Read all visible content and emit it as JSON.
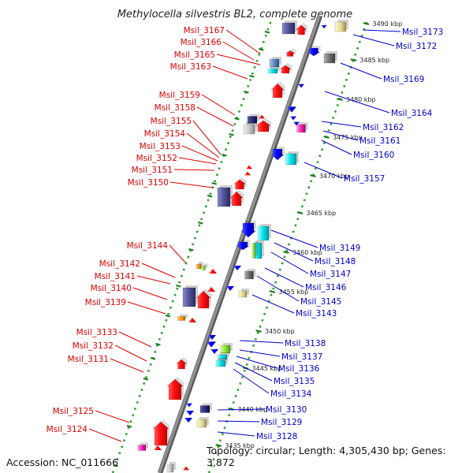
{
  "title": "Methylocella silvestris BL2, complete genome",
  "footer": {
    "accession": "Accession: NC_011666",
    "topology": "Topology: circular; Length: 4,305,430 bp; Genes: 3,872"
  },
  "ticks": [
    {
      "label": "3490 kbp",
      "kb": 3490
    },
    {
      "label": "3485 kbp",
      "kb": 3485
    },
    {
      "label": "3480 kbp",
      "kb": 3480
    },
    {
      "label": "3475 kbp",
      "kb": 3475
    },
    {
      "label": "3470 kbp",
      "kb": 3470
    },
    {
      "label": "3465 kbp",
      "kb": 3465
    },
    {
      "label": "3460 kbp",
      "kb": 3460
    },
    {
      "label": "3455 kbp",
      "kb": 3455
    },
    {
      "label": "3450 kbp",
      "kb": 3450
    },
    {
      "label": "3445 kbp",
      "kb": 3445
    },
    {
      "label": "3440 kbp",
      "kb": 3440
    },
    {
      "label": "3435 kbp",
      "kb": 3435
    }
  ],
  "left_labels": [
    "Msil_3167",
    "Msil_3166",
    "Msil_3165",
    "Msil_3163",
    "Msil_3159",
    "Msil_3158",
    "Msil_3155",
    "Msil_3154",
    "Msil_3153",
    "Msil_3152",
    "Msil_3151",
    "Msil_3150",
    "Msil_3144",
    "Msil_3142",
    "Msil_3141",
    "Msil_3140",
    "Msil_3139",
    "Msil_3133",
    "Msil_3132",
    "Msil_3131",
    "Msil_3125",
    "Msil_3124"
  ],
  "right_labels": [
    "Msil_3173",
    "Msil_3172",
    "Msil_3169",
    "Msil_3164",
    "Msil_3162",
    "Msil_3161",
    "Msil_3160",
    "Msil_3157",
    "Msil_3149",
    "Msil_3148",
    "Msil_3147",
    "Msil_3146",
    "Msil_3145",
    "Msil_3143",
    "Msil_3138",
    "Msil_3137",
    "Msil_3136",
    "Msil_3135",
    "Msil_3134",
    "Msil_3130",
    "Msil_3129",
    "Msil_3128"
  ],
  "colors": {
    "forward_label": "#dd0000",
    "reverse_label": "#0000cc",
    "backbone": "#909090",
    "dots": "#2e9e2e",
    "tick": "#1a7a1a"
  }
}
